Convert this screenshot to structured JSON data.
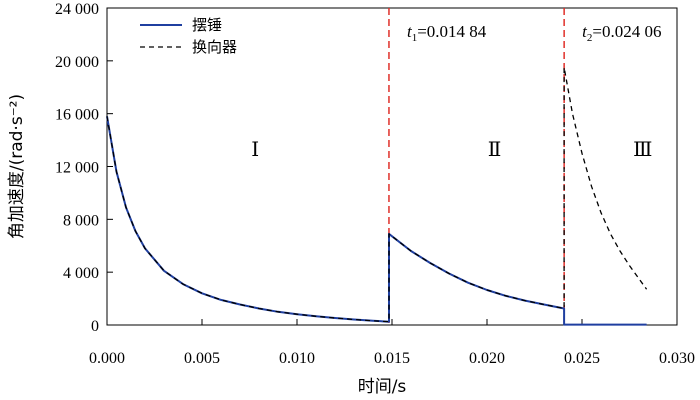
{
  "chart_data": {
    "type": "line",
    "xlabel": "时间/s",
    "ylabel": "角加速度/(rad·s⁻²)",
    "xlim": [
      0.0,
      0.03
    ],
    "ylim": [
      0,
      24000
    ],
    "x_ticks": [
      "0.000",
      "0.005",
      "0.010",
      "0.015",
      "0.020",
      "0.025",
      "0.030"
    ],
    "y_ticks": [
      "0",
      "4 000",
      "8 000",
      "12 000",
      "16 000",
      "20 000",
      "24 000"
    ],
    "grid": false,
    "legend_position": "top-left",
    "series": [
      {
        "name": "摆锤",
        "style": "solid",
        "color": "#1f3fa0",
        "x": [
          0.0,
          0.0005,
          0.001,
          0.0015,
          0.002,
          0.003,
          0.004,
          0.005,
          0.006,
          0.007,
          0.008,
          0.009,
          0.01,
          0.011,
          0.012,
          0.013,
          0.014,
          0.01484,
          0.01484,
          0.016,
          0.017,
          0.018,
          0.019,
          0.02,
          0.021,
          0.022,
          0.023,
          0.02406,
          0.02406,
          0.025,
          0.026,
          0.027,
          0.028,
          0.0284
        ],
        "y": [
          15800,
          11600,
          8900,
          7100,
          5800,
          4100,
          3100,
          2400,
          1900,
          1550,
          1250,
          1000,
          820,
          660,
          530,
          420,
          320,
          250,
          6900,
          5600,
          4700,
          3900,
          3200,
          2650,
          2200,
          1850,
          1550,
          1250,
          30,
          30,
          30,
          30,
          30,
          30
        ]
      },
      {
        "name": "换向器",
        "style": "dashed",
        "color": "#000000",
        "x": [
          0.0,
          0.0005,
          0.001,
          0.0015,
          0.002,
          0.003,
          0.004,
          0.005,
          0.006,
          0.007,
          0.008,
          0.009,
          0.01,
          0.011,
          0.012,
          0.013,
          0.014,
          0.01484,
          0.01484,
          0.016,
          0.017,
          0.018,
          0.019,
          0.02,
          0.021,
          0.022,
          0.023,
          0.02406,
          0.02406,
          0.0245,
          0.025,
          0.0255,
          0.026,
          0.0265,
          0.027,
          0.0275,
          0.028,
          0.0284
        ],
        "y": [
          15800,
          11600,
          8900,
          7100,
          5800,
          4100,
          3100,
          2400,
          1900,
          1550,
          1250,
          1000,
          820,
          660,
          530,
          420,
          320,
          250,
          6900,
          5600,
          4700,
          3900,
          3200,
          2650,
          2200,
          1850,
          1550,
          1250,
          19500,
          16000,
          13000,
          10500,
          8500,
          6900,
          5600,
          4500,
          3500,
          2700
        ]
      }
    ],
    "vlines": [
      {
        "x": 0.01484,
        "label_var": "t",
        "label_sub": "1",
        "label_value": "=0.014 84",
        "color": "#e0302a"
      },
      {
        "x": 0.02406,
        "label_var": "t",
        "label_sub": "2",
        "label_value": "=0.024 06",
        "color": "#e0302a"
      }
    ],
    "regions": [
      {
        "label": "Ⅰ",
        "x": 0.0078,
        "y": 12800
      },
      {
        "label": "Ⅱ",
        "x": 0.0204,
        "y": 12800
      },
      {
        "label": "Ⅲ",
        "x": 0.0282,
        "y": 12800
      }
    ]
  }
}
